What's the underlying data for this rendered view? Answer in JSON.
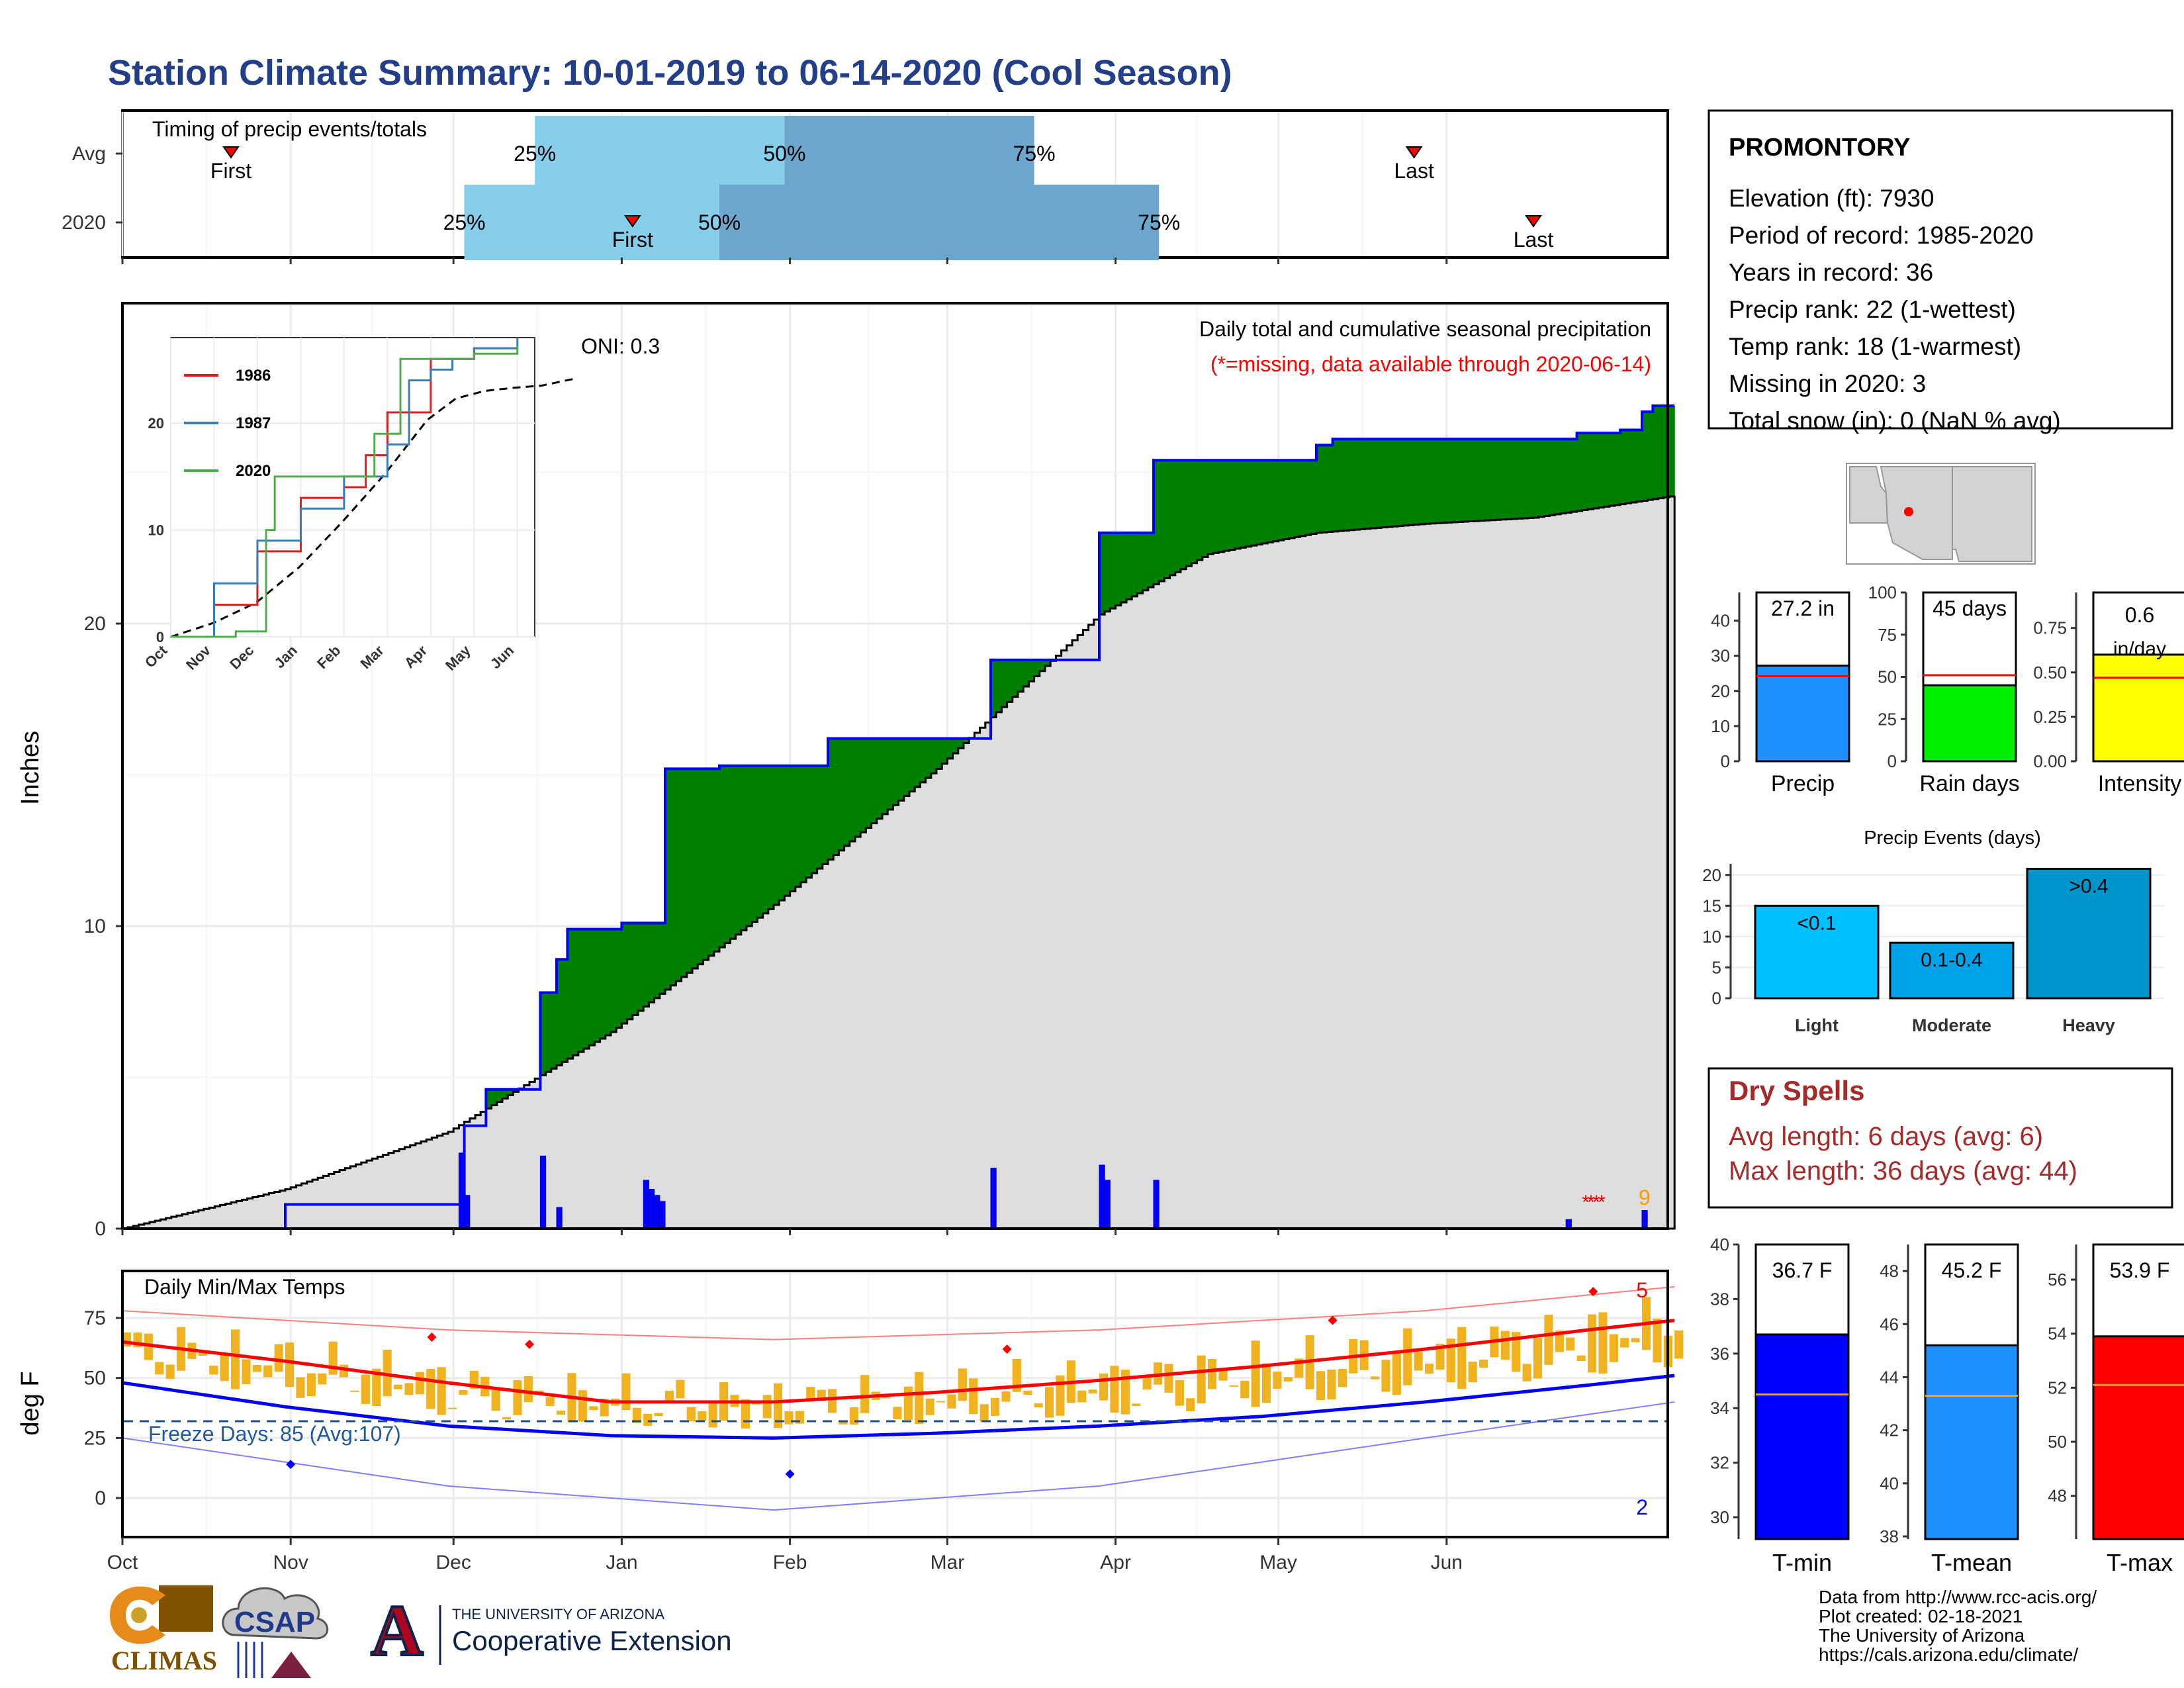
{
  "title": "Station Climate Summary: 10-01-2019 to 06-14-2020 (Cool Season)",
  "timing_panel": {
    "label": "Timing of precip events/totals",
    "rows": [
      {
        "name": "Avg",
        "first_label": "First",
        "last_label": "Last",
        "first_day": 20,
        "last_day": 238,
        "q25": 76,
        "q50": 122,
        "q75": 168,
        "p25_label": "25%",
        "p50_label": "50%",
        "p75_label": "75%"
      },
      {
        "name": "2020",
        "first_label": "First",
        "last_label": "Last",
        "first_day": 94,
        "last_day": 260,
        "q25": 63,
        "q50": 110,
        "q75": 191,
        "p25_label": "25%",
        "p50_label": "50%",
        "p75_label": "75%"
      }
    ]
  },
  "precip_panel": {
    "ylabel": "Inches",
    "yticks": [
      0,
      10,
      20
    ],
    "oni": "ONI: 0.3",
    "caption": "Daily total and cumulative seasonal precipitation",
    "missing_note": "(*=missing, data available through 2020-06-14)",
    "missing_count": "9",
    "colors": {
      "above": "#008000",
      "below": "#7f5200",
      "avg_fill": "#dedede",
      "obs_line": "#0000ff"
    }
  },
  "inset": {
    "series": [
      {
        "name": "1986",
        "color": "#e41a1c"
      },
      {
        "name": "1987",
        "color": "#377eb8"
      },
      {
        "name": "2020",
        "color": "#4daf4a"
      }
    ],
    "yticks": [
      0,
      10,
      20
    ],
    "xticks": [
      "Oct",
      "Nov",
      "Dec",
      "Jan",
      "Feb",
      "Mar",
      "Apr",
      "May",
      "Jun"
    ]
  },
  "temp_panel": {
    "label": "Daily Min/Max Temps",
    "ylabel": "deg F",
    "yticks": [
      0,
      25,
      50,
      75
    ],
    "freeze_text": "Freeze Days: 85 (Avg:107)",
    "record_high_count": "5",
    "record_low_count": "2",
    "freeze_line": 32
  },
  "months": [
    "Oct",
    "Nov",
    "Dec",
    "Jan",
    "Feb",
    "Mar",
    "Apr",
    "May",
    "Jun"
  ],
  "station": {
    "name": "PROMONTORY",
    "lines": [
      "Elevation (ft): 7930",
      "Period of record: 1985-2020",
      "Years in record: 36",
      "Precip rank: 22 (1-wettest)",
      "Temp rank: 18 (1-warmest)",
      "Missing in 2020: 3",
      "Total snow (in): 0 (NaN % avg)"
    ]
  },
  "summary_bars": [
    {
      "name": "Precip",
      "label": "27.2 in",
      "value": 27.2,
      "avg": 24.2,
      "ymax": 48,
      "yticks": [
        0,
        10,
        20,
        30,
        40
      ],
      "color": "#1e90ff"
    },
    {
      "name": "Rain days",
      "label": "45 days",
      "value": 45,
      "avg": 51,
      "ymax": 100,
      "yticks": [
        0,
        25,
        50,
        75,
        100
      ],
      "color": "#00ee00"
    },
    {
      "name": "Intensity",
      "label": "0.6 in/day",
      "value": 0.6,
      "avg": 0.47,
      "ymax": 0.95,
      "yticks": [
        "0.00",
        "0.25",
        "0.50",
        "0.75"
      ],
      "color": "#ffff00"
    }
  ],
  "precip_events": {
    "title": "Precip Events (days)",
    "yticks": [
      0,
      5,
      10,
      15,
      20
    ],
    "bars": [
      {
        "category": "Light",
        "label": "<0.1",
        "value": 15,
        "color": "#00bfff"
      },
      {
        "category": "Moderate",
        "label": "0.1-0.4",
        "value": 9,
        "color": "#00a2e8"
      },
      {
        "category": "Heavy",
        "label": ">0.4",
        "value": 21,
        "color": "#0095cc"
      }
    ]
  },
  "dry_spells": {
    "title": "Dry Spells",
    "avg_length": "Avg length: 6 days (avg: 6)",
    "max_length": "Max length: 36 days (avg: 44)"
  },
  "temp_bars": [
    {
      "name": "T-min",
      "label": "36.7 F",
      "value": 36.7,
      "avg": 34.5,
      "ymin": 29.2,
      "ymax": 40,
      "yticks": [
        30,
        32,
        34,
        36,
        38,
        40
      ],
      "color": "#0000ff"
    },
    {
      "name": "T-mean",
      "label": "45.2 F",
      "value": 45.2,
      "avg": 43.3,
      "ymin": 37.9,
      "ymax": 49,
      "yticks": [
        38,
        40,
        42,
        44,
        46,
        48
      ],
      "color": "#1e90ff"
    },
    {
      "name": "T-max",
      "label": "53.9 F",
      "value": 53.9,
      "avg": 52.1,
      "ymin": 46.4,
      "ymax": 57.3,
      "yticks": [
        48,
        50,
        52,
        54,
        56
      ],
      "color": "#ff0000"
    }
  ],
  "credits": [
    "Data from http://www.rcc-acis.org/",
    "Plot created: 02-18-2021",
    "The University of Arizona",
    "https://cals.arizona.edu/climate/"
  ],
  "logos": {
    "climas": "CLIMAS",
    "csap": "CSAP",
    "ua_line1": "THE UNIVERSITY OF ARIZONA",
    "ua_line2": "Cooperative Extension",
    "ua_letter": "A"
  },
  "chart_data": [
    {
      "type": "area",
      "title": "Daily total and cumulative seasonal precipitation",
      "ylabel": "Inches",
      "ylim": [
        0,
        30
      ],
      "x_unit": "day of season (0 = Oct 1 2019)",
      "series": [
        {
          "name": "observed cumulative",
          "x": [
            0,
            30,
            62,
            63,
            67,
            77,
            80,
            82,
            86,
            92,
            100,
            109,
            110,
            115,
            130,
            150,
            160,
            175,
            180,
            190,
            195,
            210,
            220,
            223,
            230,
            232,
            250,
            265,
            268,
            272,
            276,
            278,
            280,
            282,
            284,
            286
          ],
          "values": [
            0,
            0.8,
            0.8,
            3.4,
            4.6,
            7.8,
            8.9,
            9.9,
            9.9,
            10.1,
            15.2,
            15.2,
            15.3,
            15.3,
            16.2,
            16.2,
            18.8,
            18.8,
            23.0,
            25.4,
            25.4,
            25.4,
            25.9,
            26.1,
            26.1,
            26.1,
            26.1,
            26.1,
            26.3,
            26.3,
            26.4,
            26.4,
            27.0,
            27.2,
            27.2,
            27.2
          ]
        },
        {
          "name": "average cumulative",
          "x": [
            0,
            30,
            60,
            90,
            120,
            150,
            180,
            200,
            220,
            240,
            260,
            285
          ],
          "values": [
            0,
            1.3,
            3.2,
            6.5,
            10.7,
            15.2,
            20.3,
            22.3,
            23.0,
            23.3,
            23.5,
            24.2
          ]
        }
      ],
      "daily_precip": [
        {
          "x": 62,
          "value": 2.5
        },
        {
          "x": 63,
          "value": 1.1
        },
        {
          "x": 77,
          "value": 2.4
        },
        {
          "x": 80,
          "value": 0.7
        },
        {
          "x": 96,
          "value": 1.6
        },
        {
          "x": 97,
          "value": 1.3
        },
        {
          "x": 98,
          "value": 1.1
        },
        {
          "x": 99,
          "value": 0.9
        },
        {
          "x": 160,
          "value": 2.0
        },
        {
          "x": 180,
          "value": 2.1
        },
        {
          "x": 181,
          "value": 1.6
        },
        {
          "x": 190,
          "value": 1.6
        },
        {
          "x": 266,
          "value": 0.3
        },
        {
          "x": 280,
          "value": 0.6
        }
      ]
    },
    {
      "type": "line",
      "title": "Daily Min/Max Temps",
      "ylabel": "deg F",
      "ylim": [
        -15,
        95
      ],
      "series": [
        {
          "name": "avg max",
          "x": [
            0,
            30,
            60,
            90,
            120,
            150,
            180,
            210,
            240,
            270,
            286
          ],
          "values": [
            65,
            57,
            48,
            40,
            40,
            44,
            49,
            55,
            62,
            70,
            74
          ]
        },
        {
          "name": "avg min",
          "x": [
            0,
            30,
            60,
            90,
            120,
            150,
            180,
            210,
            240,
            270,
            286
          ],
          "values": [
            48,
            38,
            30,
            26,
            25,
            27,
            30,
            34,
            40,
            47,
            51
          ]
        },
        {
          "name": "record high",
          "x": [
            0,
            60,
            120,
            180,
            240,
            286
          ],
          "values": [
            78,
            70,
            66,
            70,
            78,
            88
          ]
        },
        {
          "name": "record low",
          "x": [
            0,
            30,
            60,
            90,
            120,
            150,
            180,
            210,
            240,
            286
          ],
          "values": [
            25,
            15,
            5,
            0,
            -5,
            0,
            5,
            15,
            25,
            40
          ]
        }
      ]
    },
    {
      "type": "line",
      "title": "",
      "xticks": [
        "Oct",
        "Nov",
        "Dec",
        "Jan",
        "Feb",
        "Mar",
        "Apr",
        "May",
        "Jun"
      ],
      "yticks": [
        0,
        10,
        20
      ],
      "series": [
        {
          "name": "1986",
          "x": [
            0,
            1,
            2,
            3,
            3.5,
            4,
            4.5,
            5,
            6,
            7,
            8
          ],
          "values": [
            0,
            3,
            8,
            13,
            13,
            14,
            17,
            21,
            26,
            27,
            27
          ]
        },
        {
          "name": "1987",
          "x": [
            0,
            1,
            2,
            3,
            4,
            5,
            5.5,
            6,
            6.5,
            7,
            8
          ],
          "values": [
            0,
            5,
            9,
            12,
            15,
            18,
            24,
            25,
            26,
            27,
            28
          ]
        },
        {
          "name": "2020",
          "x": [
            0,
            1.5,
            2.2,
            2.4,
            3,
            4.7,
            5.3,
            6,
            7,
            8
          ],
          "values": [
            0,
            0.5,
            10,
            15,
            15,
            19,
            26,
            26,
            26.5,
            27.2
          ]
        }
      ]
    }
  ]
}
